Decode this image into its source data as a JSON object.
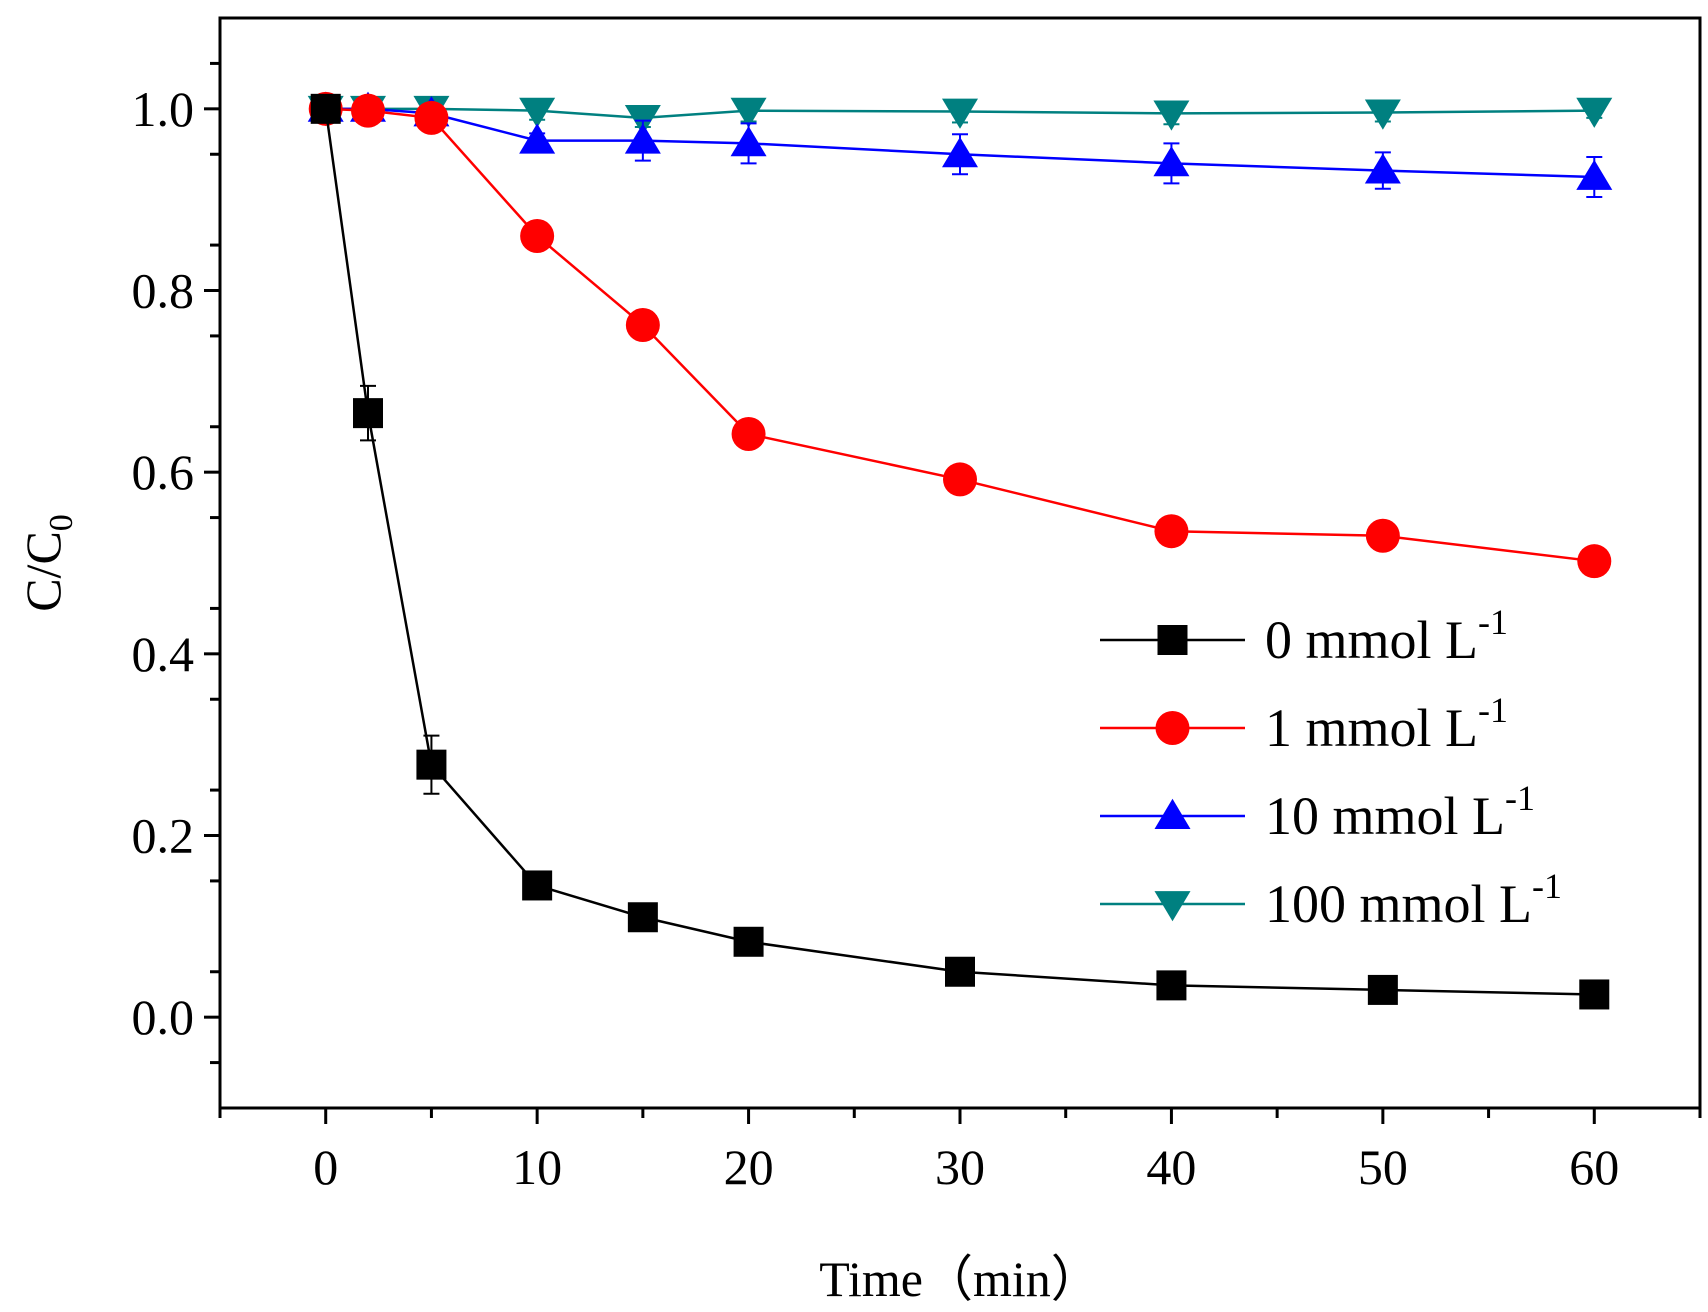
{
  "chart_data": {
    "type": "line",
    "title": "",
    "xlabel": "Time（min）",
    "ylabel": {
      "main": "C/C",
      "sub": "0"
    },
    "xlim": [
      -5,
      65
    ],
    "ylim": [
      -0.1,
      1.1
    ],
    "x_ticks": [
      0,
      10,
      20,
      30,
      40,
      50,
      60
    ],
    "x_tick_labels": [
      "0",
      "10",
      "20",
      "30",
      "40",
      "50",
      "60"
    ],
    "y_ticks": [
      0.0,
      0.2,
      0.4,
      0.6,
      0.8,
      1.0
    ],
    "y_tick_labels": [
      "0.0",
      "0.2",
      "0.4",
      "0.6",
      "0.8",
      "1.0"
    ],
    "grid": false,
    "legend_position": "center-right",
    "x": [
      0,
      2,
      5,
      10,
      15,
      20,
      30,
      40,
      50,
      60
    ],
    "series": [
      {
        "name": "0 mmol L-1",
        "label_main": "0 mmol L",
        "label_sup": "-1",
        "color": "#000000",
        "marker": "square",
        "values": [
          1.0,
          0.665,
          0.278,
          0.145,
          0.11,
          0.083,
          0.05,
          0.035,
          0.03,
          0.025
        ],
        "errors": [
          0.0,
          0.03,
          0.032,
          0.01,
          0.008,
          0.006,
          0.004,
          0.004,
          0.003,
          0.003
        ]
      },
      {
        "name": "1 mmol L-1",
        "label_main": "1 mmol L",
        "label_sup": "-1",
        "color": "#ff0000",
        "marker": "circle",
        "values": [
          1.0,
          0.998,
          0.99,
          0.86,
          0.762,
          0.642,
          0.592,
          0.535,
          0.53,
          0.502
        ],
        "errors": [
          0.004,
          0.004,
          0.006,
          0.006,
          0.006,
          0.006,
          0.006,
          0.006,
          0.006,
          0.006
        ]
      },
      {
        "name": "10 mmol L-1",
        "label_main": "10 mmol L",
        "label_sup": "-1",
        "color": "#0000ff",
        "marker": "triangle-up",
        "values": [
          1.0,
          1.0,
          0.995,
          0.965,
          0.965,
          0.962,
          0.95,
          0.94,
          0.932,
          0.925
        ],
        "errors": [
          0.004,
          0.004,
          0.006,
          0.008,
          0.022,
          0.022,
          0.022,
          0.022,
          0.02,
          0.022
        ]
      },
      {
        "name": "100 mmol L-1",
        "label_main": "100 mmol L",
        "label_sup": "-1",
        "color": "#008080",
        "marker": "triangle-down",
        "values": [
          1.0,
          1.0,
          1.0,
          0.998,
          0.99,
          0.998,
          0.997,
          0.995,
          0.996,
          0.998
        ],
        "errors": [
          0.008,
          0.006,
          0.012,
          0.01,
          0.01,
          0.012,
          0.012,
          0.012,
          0.01,
          0.008
        ]
      }
    ]
  }
}
